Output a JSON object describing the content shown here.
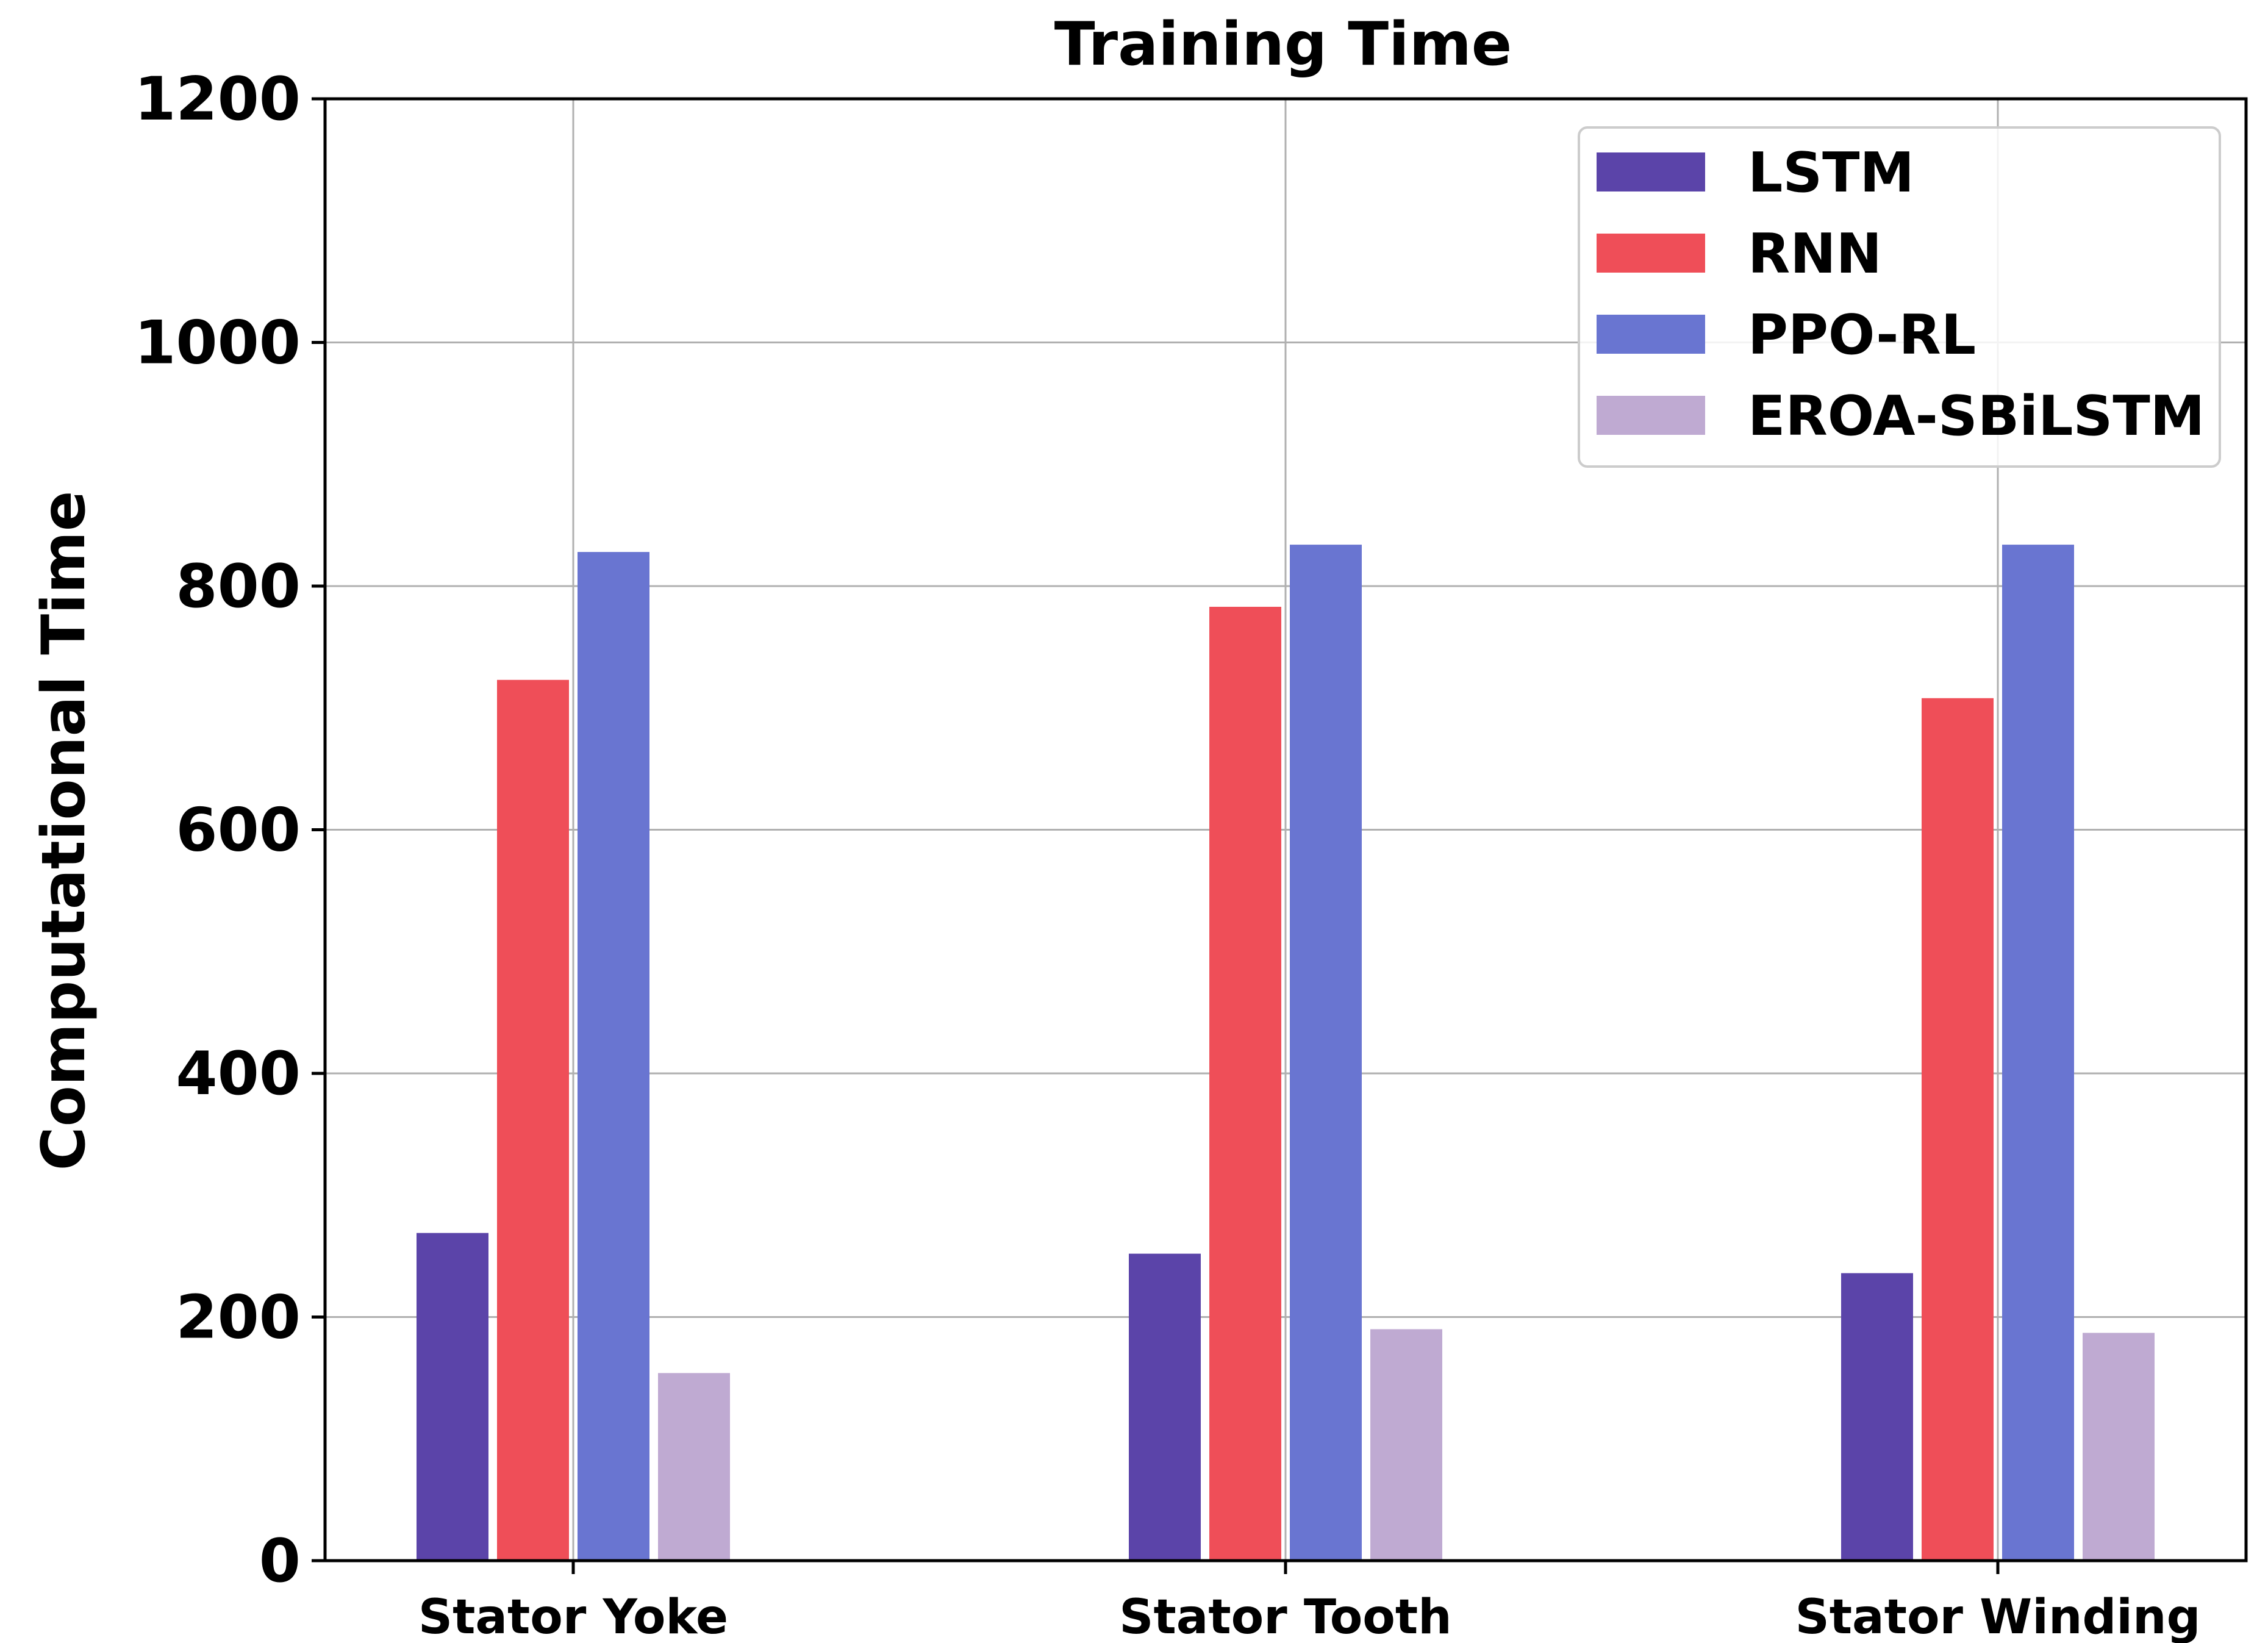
{
  "chart_data": {
    "type": "bar",
    "title": "Training Time",
    "xlabel": "",
    "ylabel": "Computational Time",
    "ylim": [
      0,
      1200
    ],
    "yticks": [
      0,
      200,
      400,
      600,
      800,
      1000,
      1200
    ],
    "grid": true,
    "legend_position": "top-right",
    "categories": [
      "Stator Yoke",
      "Stator Tooth",
      "Stator Winding"
    ],
    "series": [
      {
        "name": "LSTM",
        "color": "#5b44a9",
        "values": [
          269,
          252,
          236
        ]
      },
      {
        "name": "RNN",
        "color": "#ef4e58",
        "values": [
          723,
          783,
          708
        ]
      },
      {
        "name": "PPO-RL",
        "color": "#6975d1",
        "values": [
          828,
          834,
          834
        ]
      },
      {
        "name": "EROA-SBiLSTM",
        "color": "#bfaad2",
        "values": [
          154,
          190,
          187
        ]
      }
    ]
  }
}
